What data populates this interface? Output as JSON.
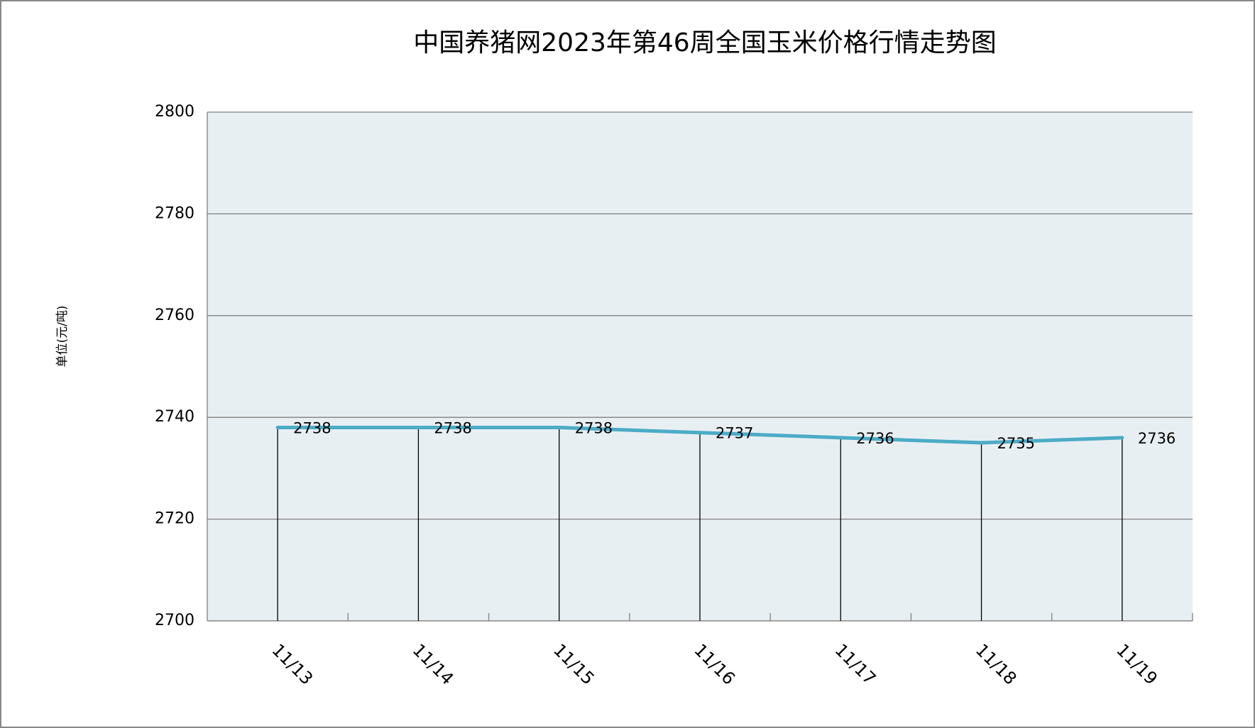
{
  "chart_data": {
    "type": "line",
    "title": "中国养猪网2023年第46周全国玉米价格行情走势图",
    "y_label": "单位(元/吨)",
    "categories": [
      "11/13",
      "11/14",
      "11/15",
      "11/16",
      "11/17",
      "11/18",
      "11/19"
    ],
    "values": [
      2738,
      2738,
      2738,
      2737,
      2736,
      2735,
      2736
    ],
    "color": "#4bacc6",
    "ylim": [
      2700,
      2800
    ],
    "yticks": [
      2700,
      2720,
      2740,
      2760,
      2780,
      2800
    ],
    "grid": true
  }
}
